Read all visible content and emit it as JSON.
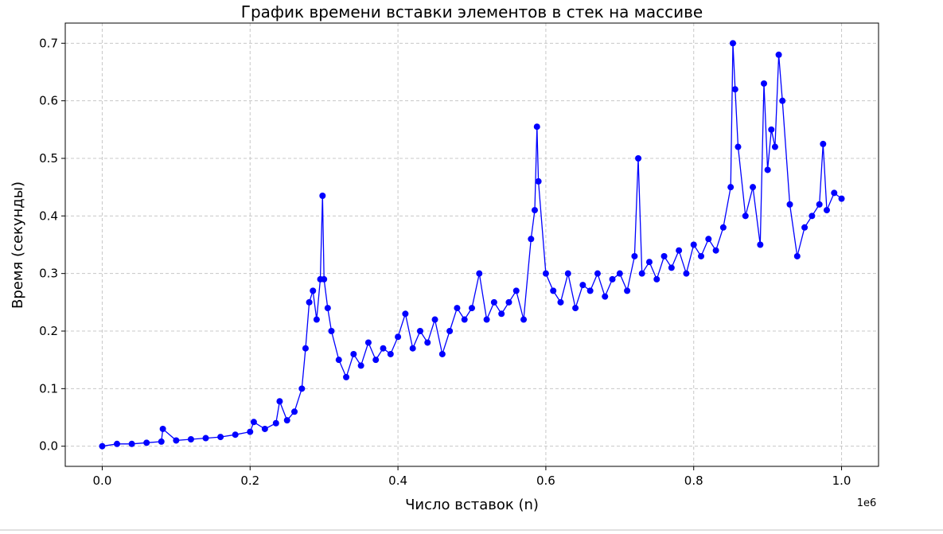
{
  "chart_data": {
    "type": "line",
    "title": "График времени вставки элементов в стек на массиве",
    "xlabel": "Число вставок (n)",
    "ylabel": "Время (секунды)",
    "x_offset_label": "1e6",
    "xlim": [
      -0.05,
      1.05
    ],
    "ylim": [
      -0.035,
      0.735
    ],
    "x_scale": 1000000,
    "xticks": [
      0.0,
      0.2,
      0.4,
      0.6,
      0.8,
      1.0
    ],
    "xtick_labels": [
      "0.0",
      "0.2",
      "0.4",
      "0.6",
      "0.8",
      "1.0"
    ],
    "yticks": [
      0.0,
      0.1,
      0.2,
      0.3,
      0.4,
      0.5,
      0.6,
      0.7
    ],
    "ytick_labels": [
      "0.0",
      "0.1",
      "0.2",
      "0.3",
      "0.4",
      "0.5",
      "0.6",
      "0.7"
    ],
    "grid": true,
    "legend": "none",
    "series": [
      {
        "color": "#0000ff",
        "marker": "circle",
        "x": [
          0.0,
          0.02,
          0.04,
          0.06,
          0.08,
          0.082,
          0.1,
          0.12,
          0.14,
          0.16,
          0.18,
          0.2,
          0.205,
          0.22,
          0.235,
          0.24,
          0.25,
          0.26,
          0.27,
          0.275,
          0.28,
          0.285,
          0.29,
          0.295,
          0.298,
          0.3,
          0.305,
          0.31,
          0.32,
          0.33,
          0.34,
          0.35,
          0.36,
          0.37,
          0.38,
          0.39,
          0.4,
          0.41,
          0.42,
          0.43,
          0.44,
          0.45,
          0.46,
          0.47,
          0.48,
          0.49,
          0.5,
          0.51,
          0.52,
          0.53,
          0.54,
          0.55,
          0.56,
          0.57,
          0.58,
          0.585,
          0.588,
          0.59,
          0.6,
          0.61,
          0.62,
          0.63,
          0.64,
          0.65,
          0.66,
          0.67,
          0.68,
          0.69,
          0.7,
          0.71,
          0.72,
          0.725,
          0.73,
          0.74,
          0.75,
          0.76,
          0.77,
          0.78,
          0.79,
          0.8,
          0.81,
          0.82,
          0.83,
          0.84,
          0.85,
          0.853,
          0.856,
          0.86,
          0.87,
          0.88,
          0.89,
          0.895,
          0.9,
          0.905,
          0.91,
          0.915,
          0.92,
          0.93,
          0.94,
          0.95,
          0.96,
          0.97,
          0.975,
          0.98,
          0.99,
          1.0
        ],
        "y": [
          0.0,
          0.004,
          0.004,
          0.006,
          0.008,
          0.03,
          0.01,
          0.012,
          0.014,
          0.016,
          0.02,
          0.025,
          0.042,
          0.03,
          0.04,
          0.078,
          0.045,
          0.06,
          0.1,
          0.17,
          0.25,
          0.27,
          0.22,
          0.29,
          0.435,
          0.29,
          0.24,
          0.2,
          0.15,
          0.12,
          0.16,
          0.14,
          0.18,
          0.15,
          0.17,
          0.16,
          0.19,
          0.23,
          0.17,
          0.2,
          0.18,
          0.22,
          0.16,
          0.2,
          0.24,
          0.22,
          0.24,
          0.3,
          0.22,
          0.25,
          0.23,
          0.25,
          0.27,
          0.22,
          0.36,
          0.41,
          0.555,
          0.46,
          0.3,
          0.27,
          0.25,
          0.3,
          0.24,
          0.28,
          0.27,
          0.3,
          0.26,
          0.29,
          0.3,
          0.27,
          0.33,
          0.5,
          0.3,
          0.32,
          0.29,
          0.33,
          0.31,
          0.34,
          0.3,
          0.35,
          0.33,
          0.36,
          0.34,
          0.38,
          0.45,
          0.7,
          0.62,
          0.52,
          0.4,
          0.45,
          0.35,
          0.63,
          0.48,
          0.55,
          0.52,
          0.68,
          0.6,
          0.42,
          0.33,
          0.38,
          0.4,
          0.42,
          0.525,
          0.41,
          0.44,
          0.43
        ]
      }
    ]
  }
}
